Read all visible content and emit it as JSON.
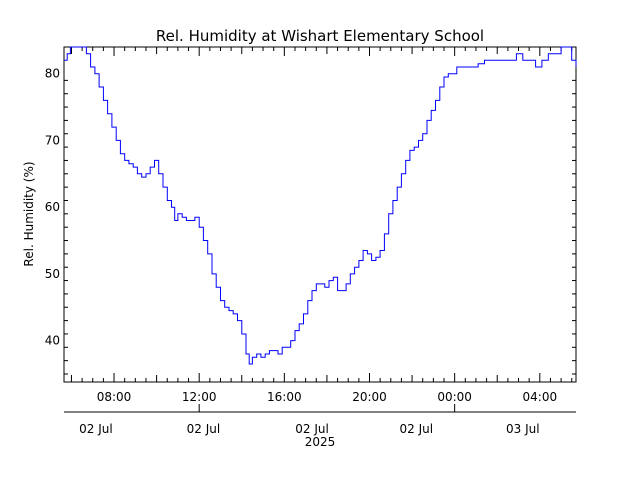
{
  "chart_data": {
    "type": "line",
    "title": "Rel. Humidity at Wishart Elementary School",
    "ylabel": "Rel. Humidity (%)",
    "xlabel": "",
    "year_label": "2025",
    "x_unit": "hours",
    "xlim": [
      5.65,
      29.7
    ],
    "ylim": [
      33.8,
      84
    ],
    "yticks": [
      40,
      50,
      60,
      70,
      80
    ],
    "xticks": [
      {
        "value": 8,
        "label": "08:00"
      },
      {
        "value": 12,
        "label": "12:00"
      },
      {
        "value": 16,
        "label": "16:00"
      },
      {
        "value": 20,
        "label": "20:00"
      },
      {
        "value": 24,
        "label": "00:00"
      },
      {
        "value": 28,
        "label": "04:00"
      }
    ],
    "date_labels": [
      {
        "value": 7.15,
        "label": "02 Jul"
      },
      {
        "value": 12.2,
        "label": "02 Jul"
      },
      {
        "value": 17.3,
        "label": "02 Jul"
      },
      {
        "value": 22.2,
        "label": "02 Jul"
      },
      {
        "value": 27.2,
        "label": "03 Jul"
      }
    ],
    "grid": false,
    "series": [
      {
        "color": "#0000ff",
        "x": [
          5.65,
          5.8,
          5.95,
          6.1,
          6.3,
          6.5,
          6.7,
          6.9,
          7.1,
          7.3,
          7.5,
          7.7,
          7.9,
          8.1,
          8.3,
          8.5,
          8.7,
          8.9,
          9.1,
          9.3,
          9.5,
          9.7,
          9.9,
          10.1,
          10.3,
          10.5,
          10.7,
          10.85,
          11.0,
          11.2,
          11.4,
          11.6,
          11.8,
          12.0,
          12.2,
          12.4,
          12.6,
          12.8,
          13.0,
          13.2,
          13.4,
          13.6,
          13.8,
          14.0,
          14.2,
          14.35,
          14.5,
          14.7,
          14.9,
          15.1,
          15.3,
          15.5,
          15.7,
          15.9,
          16.1,
          16.3,
          16.5,
          16.7,
          16.9,
          17.1,
          17.3,
          17.5,
          17.7,
          17.9,
          18.1,
          18.3,
          18.5,
          18.7,
          18.9,
          19.1,
          19.3,
          19.5,
          19.7,
          19.9,
          20.1,
          20.3,
          20.5,
          20.7,
          20.9,
          21.1,
          21.3,
          21.5,
          21.7,
          21.9,
          22.1,
          22.3,
          22.5,
          22.7,
          22.9,
          23.1,
          23.3,
          23.5,
          23.7,
          23.9,
          24.1,
          24.3,
          24.5,
          24.8,
          25.1,
          25.4,
          25.7,
          26.0,
          26.3,
          26.6,
          26.9,
          27.2,
          27.5,
          27.8,
          28.1,
          28.4,
          28.7,
          29.0,
          29.3,
          29.5,
          29.7
        ],
        "y": [
          82,
          83,
          84,
          84,
          84,
          84,
          83,
          81,
          80,
          78,
          76,
          74,
          72,
          70,
          68,
          67,
          66.5,
          66,
          65,
          64.5,
          65,
          66,
          67,
          65,
          63,
          61,
          60,
          58,
          59,
          58.5,
          58,
          58,
          58.5,
          57,
          55,
          53,
          50,
          48,
          46,
          45,
          44.5,
          44,
          43,
          41,
          38,
          36.5,
          37.5,
          38,
          37.5,
          38,
          38.5,
          38.5,
          38,
          39,
          39,
          40,
          41.5,
          42.5,
          44,
          46,
          47.5,
          48.5,
          48.5,
          48,
          49,
          49.5,
          47.5,
          47.5,
          48.5,
          50,
          51,
          52,
          53.5,
          53,
          52,
          52.5,
          53.5,
          56,
          59,
          61,
          63,
          65,
          67,
          68.5,
          69,
          70,
          71,
          73,
          74.5,
          76,
          78,
          79.5,
          80,
          80,
          81,
          81,
          81,
          81,
          81.5,
          82,
          82,
          82,
          82,
          82,
          83,
          82,
          82,
          81,
          82,
          83,
          83,
          84,
          84,
          82,
          81
        ]
      }
    ]
  }
}
